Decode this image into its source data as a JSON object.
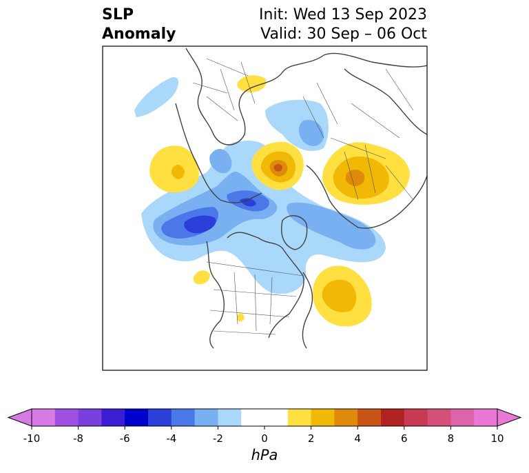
{
  "title": {
    "left_line1": "SLP",
    "left_line2": "Anomaly",
    "init": "Init: Wed 13 Sep 2023",
    "valid": "Valid: 30 Sep – 06 Oct"
  },
  "colorbar": {
    "unit": "hPa",
    "ticks": [
      "-10",
      "-8",
      "-6",
      "-4",
      "-2",
      "0",
      "2",
      "4",
      "6",
      "8",
      "10"
    ],
    "bins": [
      {
        "from": -10,
        "to": -9,
        "color": "#d67ae6"
      },
      {
        "from": -9,
        "to": -8,
        "color": "#a050e0"
      },
      {
        "from": -8,
        "to": -7,
        "color": "#7840dc"
      },
      {
        "from": -7,
        "to": -6,
        "color": "#3c1ed2"
      },
      {
        "from": -6,
        "to": -5,
        "color": "#0000cc"
      },
      {
        "from": -5,
        "to": -4,
        "color": "#2a3ed8"
      },
      {
        "from": -4,
        "to": -3,
        "color": "#4a78e8"
      },
      {
        "from": -3,
        "to": -2,
        "color": "#78b0f2"
      },
      {
        "from": -2,
        "to": -1,
        "color": "#aad8fa"
      },
      {
        "from": -1,
        "to": 1,
        "color": "#ffffff"
      },
      {
        "from": 1,
        "to": 2,
        "color": "#ffe040"
      },
      {
        "from": 2,
        "to": 3,
        "color": "#f2b806"
      },
      {
        "from": 3,
        "to": 4,
        "color": "#e08a0c"
      },
      {
        "from": 4,
        "to": 5,
        "color": "#c85416"
      },
      {
        "from": 5,
        "to": 6,
        "color": "#b02222"
      },
      {
        "from": 6,
        "to": 7,
        "color": "#c83a52"
      },
      {
        "from": 7,
        "to": 8,
        "color": "#d45078"
      },
      {
        "from": 8,
        "to": 9,
        "color": "#dc64a8"
      },
      {
        "from": 9,
        "to": 10,
        "color": "#e87ad6"
      }
    ],
    "extend_low_color": "#d67ae6",
    "extend_high_color": "#e87ad6"
  }
}
